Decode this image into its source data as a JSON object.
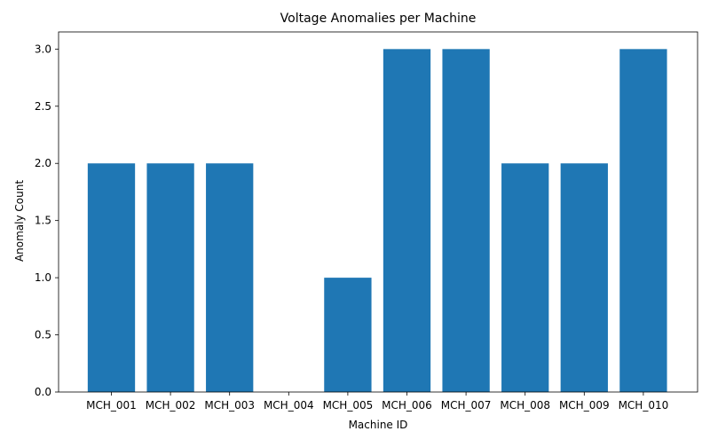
{
  "chart_data": {
    "type": "bar",
    "title": "Voltage Anomalies per Machine",
    "xlabel": "Machine ID",
    "ylabel": "Anomaly Count",
    "categories": [
      "MCH_001",
      "MCH_002",
      "MCH_003",
      "MCH_004",
      "MCH_005",
      "MCH_006",
      "MCH_007",
      "MCH_008",
      "MCH_009",
      "MCH_010"
    ],
    "values": [
      2,
      2,
      2,
      0,
      1,
      3,
      3,
      2,
      2,
      3
    ],
    "ylim": [
      0,
      3.15
    ],
    "yticks": [
      "0.0",
      "0.5",
      "1.0",
      "1.5",
      "2.0",
      "2.5",
      "3.0"
    ],
    "grid": false,
    "bar_color": "#1f77b4"
  }
}
